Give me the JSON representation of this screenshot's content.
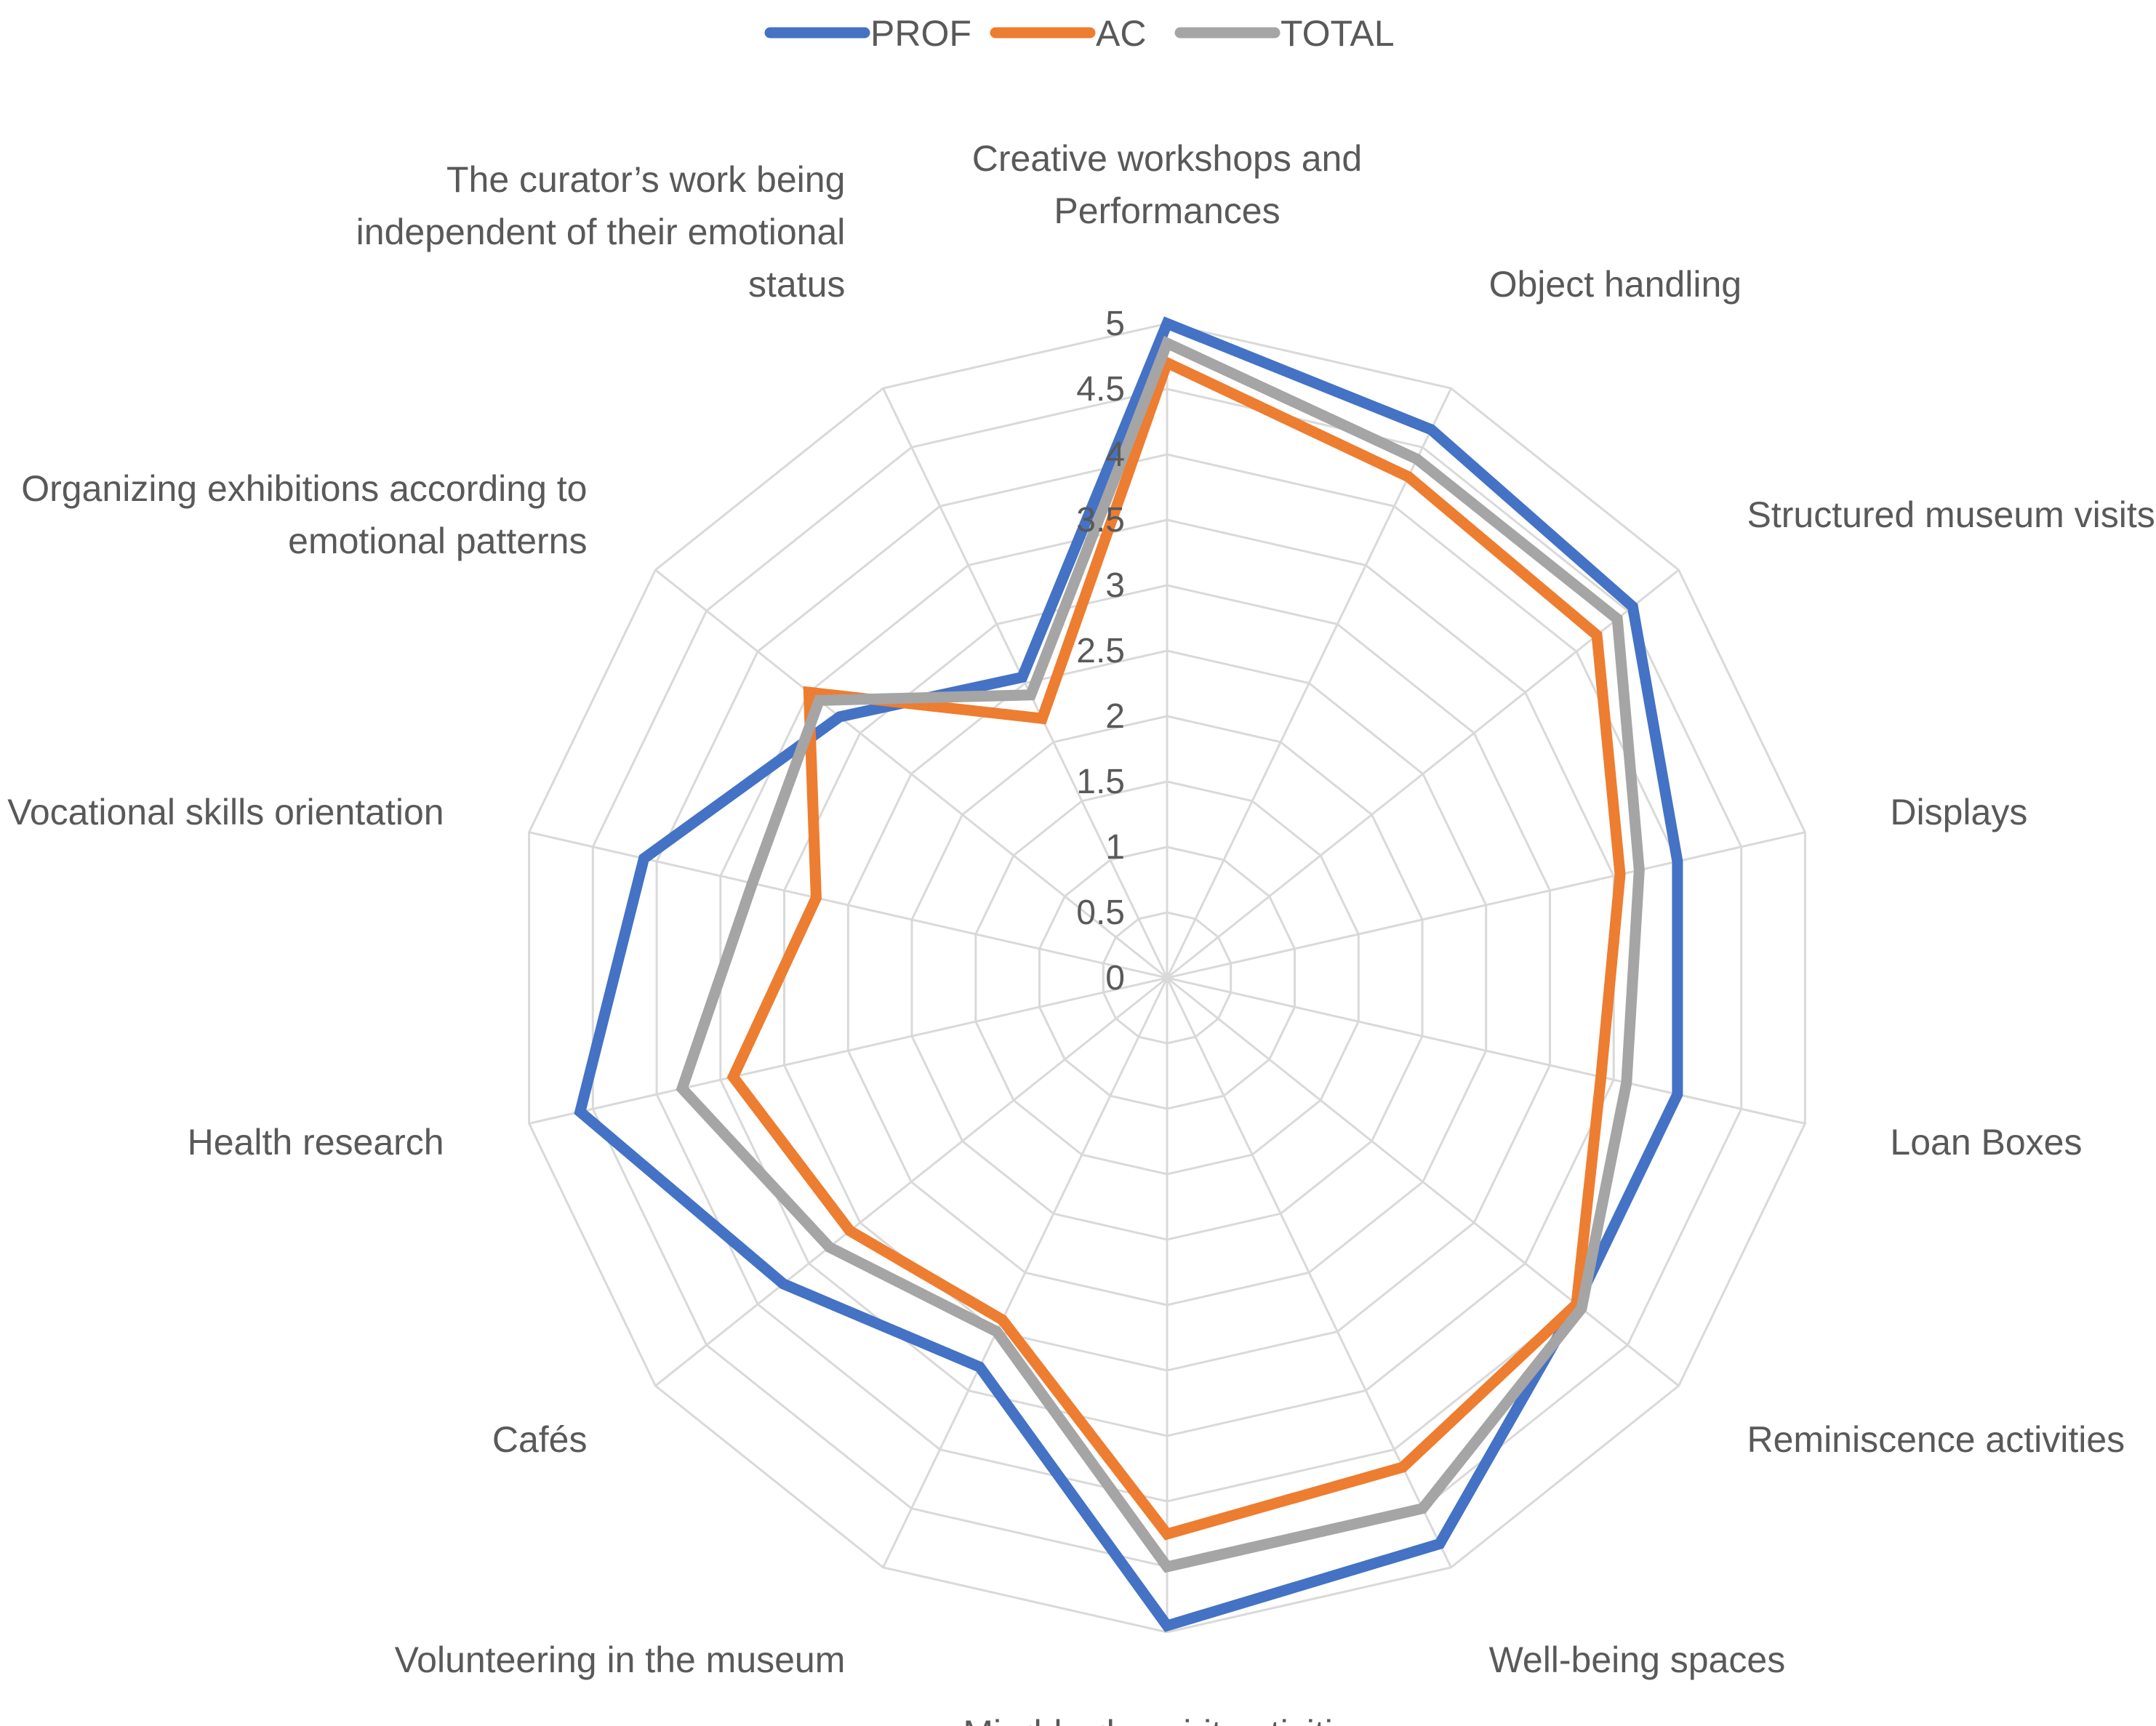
{
  "chart_data": {
    "type": "radar",
    "title": "",
    "categories": [
      "Creative workshops and Performances",
      "Object handling",
      "Structured museum visits",
      "Displays",
      "Loan Boxes",
      "Reminiscence activities",
      "Well-being spaces",
      "Mind-body-spirit activities",
      "Volunteering in the museum",
      "Cafés",
      "Health research",
      "Vocational skills orientation",
      "Organizing exhibitions according to emotional patterns",
      "The curator’s work being independent of their emotional status"
    ],
    "category_label_lines": [
      [
        "Creative workshops and",
        "Performances"
      ],
      [
        "Object handling"
      ],
      [
        "Structured museum visits"
      ],
      [
        "Displays"
      ],
      [
        "Loan Boxes"
      ],
      [
        "Reminiscence activities"
      ],
      [
        "Well-being spaces"
      ],
      [
        "Mind-body-spirit activities"
      ],
      [
        "Volunteering in the museum"
      ],
      [
        "Cafés"
      ],
      [
        "Health research"
      ],
      [
        "Vocational skills orientation"
      ],
      [
        "Organizing exhibitions according to",
        "emotional patterns"
      ],
      [
        "The curator’s work being",
        "independent of their emotional",
        "status"
      ]
    ],
    "rlim": [
      0,
      5
    ],
    "ticks": [
      "0",
      "0.5",
      "1",
      "1.5",
      "2",
      "2.5",
      "3",
      "3.5",
      "4",
      "4.5",
      "5"
    ],
    "legend_position": "top-center",
    "series": [
      {
        "name": "PROF",
        "color": "#4472c4",
        "values": [
          5.0,
          4.65,
          4.55,
          4.0,
          4.0,
          4.0,
          4.8,
          4.95,
          3.3,
          3.75,
          4.6,
          4.1,
          3.2,
          2.55
        ]
      },
      {
        "name": "AC",
        "color": "#ed7d31",
        "values": [
          4.7,
          4.25,
          4.2,
          3.55,
          3.4,
          4.0,
          4.15,
          4.25,
          2.9,
          3.1,
          3.4,
          2.75,
          3.5,
          2.2
        ]
      },
      {
        "name": "TOTAL",
        "color": "#a5a5a5",
        "values": [
          4.85,
          4.4,
          4.4,
          3.7,
          3.6,
          4.05,
          4.5,
          4.5,
          3.0,
          3.3,
          3.8,
          3.25,
          3.4,
          2.4
        ]
      }
    ]
  }
}
